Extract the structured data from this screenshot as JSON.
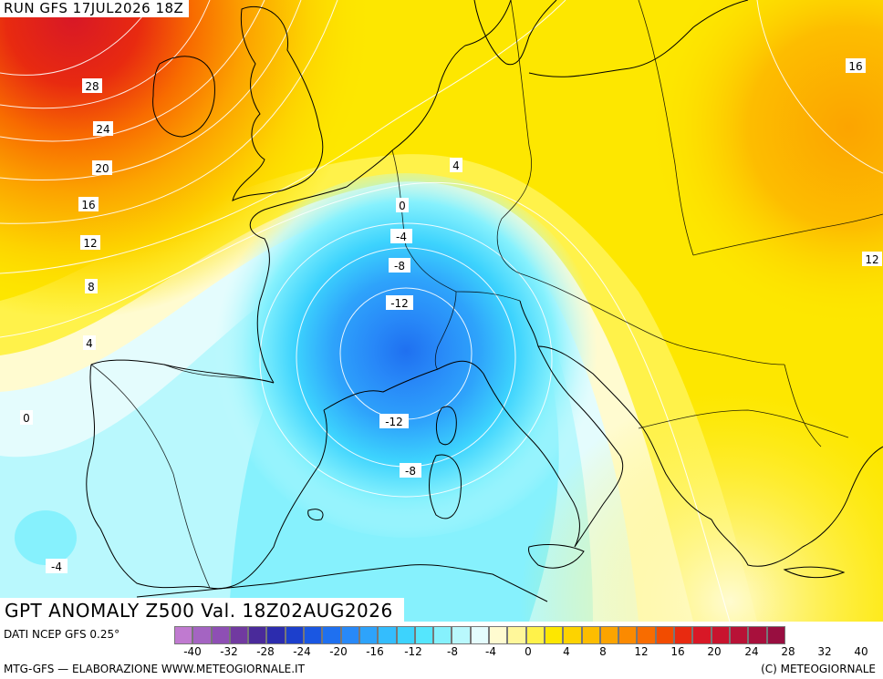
{
  "header": {
    "run_label": "RUN GFS 17JUL2026 18Z"
  },
  "title": "GPT ANOMALY Z500 Val. 18Z02AUG2026",
  "footer": {
    "data_source": "DATI NCEP GFS 0.25°",
    "credit_left": "MTG-GFS — ELABORAZIONE WWW.METEOGIORNALE.IT",
    "credit_right": "(C) METEOGIORNALE"
  },
  "legend": {
    "colors": [
      "#c07ad0",
      "#a464c2",
      "#8e4fb4",
      "#713aa0",
      "#4a2a9a",
      "#2c2cae",
      "#1c3fcc",
      "#1a57e2",
      "#1f70f0",
      "#2889f8",
      "#2ea3fb",
      "#34bdfd",
      "#3dd3fd",
      "#55e6fd",
      "#86f1fd",
      "#b9f8fd",
      "#e4fcfd",
      "#fffbd0",
      "#fff79a",
      "#fff24a",
      "#fde700",
      "#fdd300",
      "#fdbd00",
      "#fca400",
      "#fb8a00",
      "#f86c00",
      "#f24c00",
      "#e82a10",
      "#d81826",
      "#c8142e",
      "#b81236",
      "#a8103c",
      "#980e40"
    ],
    "tick_labels": [
      "-40",
      "-32",
      "-28",
      "-24",
      "-20",
      "-16",
      "-12",
      "-8",
      "-4",
      "0",
      "4",
      "8",
      "12",
      "16",
      "20",
      "24",
      "28",
      "32",
      "40"
    ]
  },
  "map_labels": [
    {
      "text": "28"
    },
    {
      "text": "24"
    },
    {
      "text": "20"
    },
    {
      "text": "16"
    },
    {
      "text": "12"
    },
    {
      "text": "8"
    },
    {
      "text": "4"
    },
    {
      "text": "0"
    },
    {
      "text": "4"
    },
    {
      "text": "0"
    },
    {
      "text": "-4"
    },
    {
      "text": "-8"
    },
    {
      "text": "-12"
    },
    {
      "text": "-12"
    },
    {
      "text": "-8"
    },
    {
      "text": "-4"
    },
    {
      "text": "16"
    },
    {
      "text": "12"
    }
  ]
}
